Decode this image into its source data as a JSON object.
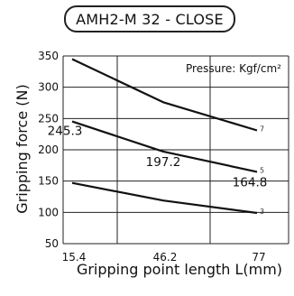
{
  "header": {
    "title": "AMH2-M 32 - CLOSE"
  },
  "chart_data": {
    "type": "line",
    "title": "AMH2-M 32 - CLOSE",
    "xlabel": "Gripping point length L(mm)",
    "ylabel": "Gripping force (N)",
    "x": [
      15.4,
      46.2,
      77
    ],
    "xticks": [
      "15.4",
      "46.2",
      "77"
    ],
    "ylim": [
      50,
      350
    ],
    "yticks": [
      50,
      100,
      150,
      200,
      250,
      300,
      350
    ],
    "grid": true,
    "annotation": "Pressure: Kgf/cm²",
    "series": [
      {
        "name": "7",
        "values": [
          345,
          276,
          231
        ]
      },
      {
        "name": "5",
        "values": [
          245.3,
          197.2,
          164.8
        ]
      },
      {
        "name": "3",
        "values": [
          147,
          119,
          99
        ]
      }
    ],
    "data_labels": [
      {
        "text": "245.3",
        "series": 1,
        "point": 0
      },
      {
        "text": "197.2",
        "series": 1,
        "point": 1
      },
      {
        "text": "164.8",
        "series": 1,
        "point": 2
      }
    ]
  }
}
